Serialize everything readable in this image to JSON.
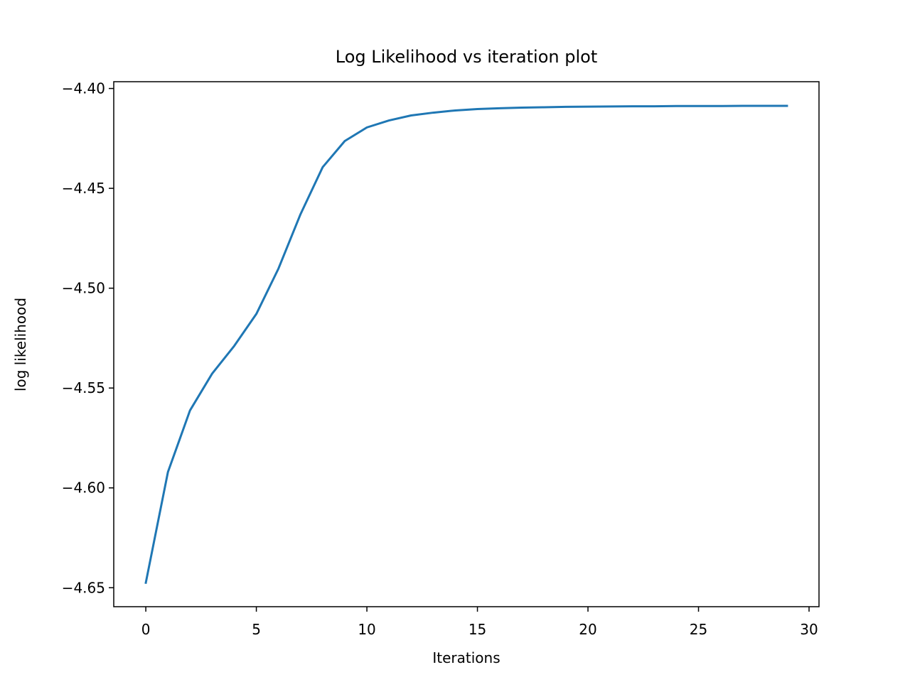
{
  "chart_data": {
    "type": "line",
    "title": "Log Likelihood vs iteration plot",
    "xlabel": "Iterations",
    "ylabel": "log likelihood",
    "x": [
      0,
      1,
      2,
      3,
      4,
      5,
      6,
      7,
      8,
      9,
      10,
      11,
      12,
      13,
      14,
      15,
      16,
      17,
      18,
      19,
      20,
      21,
      22,
      23,
      24,
      25,
      26,
      27,
      28,
      29
    ],
    "values": [
      -4.6475,
      -4.5921,
      -4.5612,
      -4.5428,
      -4.5289,
      -4.5129,
      -4.4902,
      -4.4629,
      -4.4394,
      -4.4263,
      -4.4195,
      -4.416,
      -4.4135,
      -4.4121,
      -4.411,
      -4.4103,
      -4.4099,
      -4.4096,
      -4.4094,
      -4.4092,
      -4.4091,
      -4.409,
      -4.4089,
      -4.4089,
      -4.4088,
      -4.4088,
      -4.4088,
      -4.4087,
      -4.4087,
      -4.4087
    ],
    "color": "#1f77b4",
    "xlim": [
      -1.45,
      30.45
    ],
    "ylim": [
      -4.6595,
      -4.3966
    ],
    "xticks": [
      0,
      5,
      10,
      15,
      20,
      25,
      30
    ],
    "yticks": [
      {
        "value": -4.65,
        "label": "−4.65"
      },
      {
        "value": -4.6,
        "label": "−4.60"
      },
      {
        "value": -4.55,
        "label": "−4.55"
      },
      {
        "value": -4.5,
        "label": "−4.50"
      },
      {
        "value": -4.45,
        "label": "−4.45"
      },
      {
        "value": -4.4,
        "label": "−4.40"
      }
    ],
    "grid": false
  }
}
